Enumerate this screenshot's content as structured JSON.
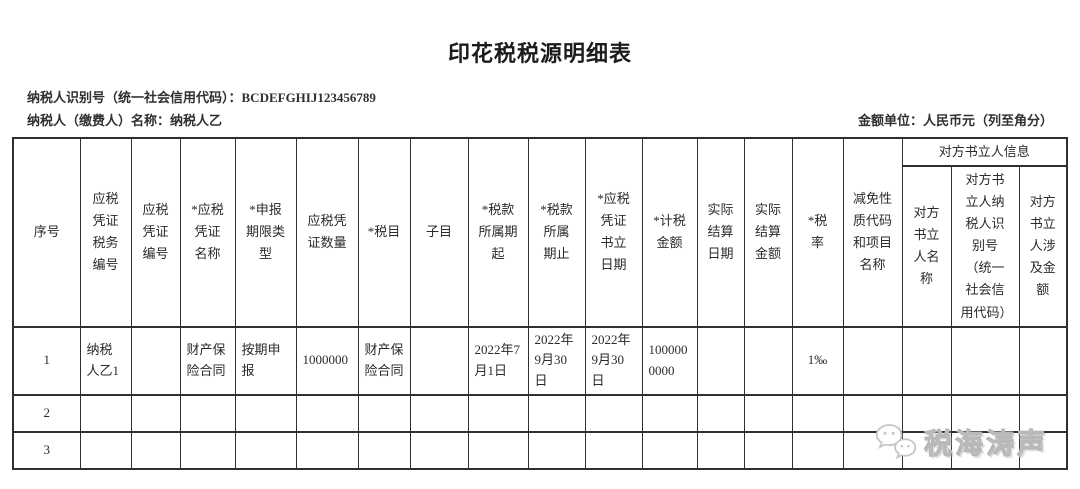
{
  "title": "印花税税源明细表",
  "meta": {
    "taxpayer_id_label": "纳税人识别号（统一社会信用代码）：",
    "taxpayer_id_value": "BCDEFGHIJ123456789",
    "taxpayer_name_label": "纳税人（缴费人）名称：",
    "taxpayer_name_value": "纳税人乙",
    "unit_note": "金额单位：人民币元（列至角分）"
  },
  "table": {
    "group_header": "对方书立人信息",
    "columns": [
      "序号",
      "应税凭证税务编号",
      "应税凭证编号",
      "*应税凭证名称",
      "*申报期限类型",
      "应税凭证数量",
      "*税目",
      "子目",
      "*税款所属期起",
      "*税款所属期止",
      "*应税凭证书立日期",
      "*计税金额",
      "实际结算日期",
      "实际结算金额",
      "*税率",
      "减免性质代码和项目名称",
      "对方书立人名称",
      "对方书立人纳税人识别号（统一社会信用代码）",
      "对方书立人涉及金额"
    ],
    "rows": [
      [
        "1",
        "纳税人乙1",
        "",
        "财产保险合同",
        "按期申报",
        "1000000",
        "财产保险合同",
        "",
        "2022年7月1日",
        "2022年9月30日",
        "2022年9月30日",
        "1000000000",
        "",
        "",
        "1‰",
        "",
        "",
        "",
        ""
      ],
      [
        "2",
        "",
        "",
        "",
        "",
        "",
        "",
        "",
        "",
        "",
        "",
        "",
        "",
        "",
        "",
        "",
        "",
        "",
        ""
      ],
      [
        "3",
        "",
        "",
        "",
        "",
        "",
        "",
        "",
        "",
        "",
        "",
        "",
        "",
        "",
        "",
        "",
        "",
        "",
        ""
      ]
    ]
  },
  "watermark": {
    "text": "税海涛声",
    "logo": "wechat-bubbles",
    "color": "#c6c6c6"
  }
}
